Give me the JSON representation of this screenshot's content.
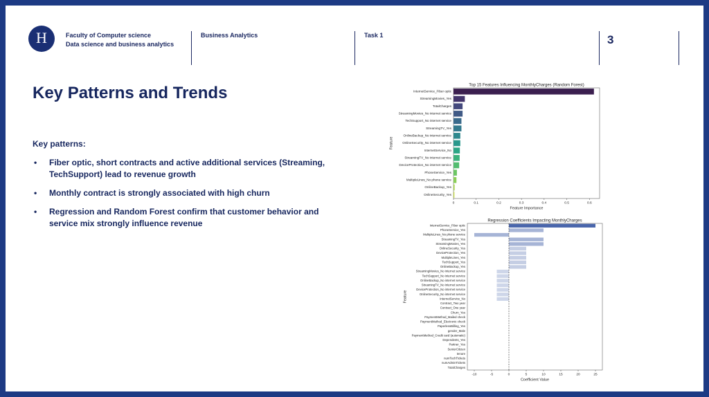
{
  "header": {
    "faculty": "Faculty of Computer science",
    "program": "Data science and business analytics",
    "course": "Business Analytics",
    "task": "Task 1",
    "page": "3"
  },
  "body": {
    "title": "Key Patterns and Trends",
    "lead": "Key patterns:",
    "bullets": [
      "Fiber optic, short contracts and active additional services (Streaming, TechSupport) lead to revenue growth",
      "Monthly contract is strongly associated with high churn",
      "Regression and Random Forest confirm that customer behavior and service mix strongly influence revenue"
    ]
  },
  "chart_data": [
    {
      "type": "barh",
      "title": "Top 15 Features Influencing MonthlyCharges (Random Forest)",
      "xlabel": "Feature Importance",
      "ylabel": "Feature",
      "categories": [
        "InternetService_Fiber optic",
        "StreamingMovies_Yes",
        "TotalCharges",
        "StreamingMovies_No internet service",
        "TechSupport_No internet service",
        "StreamingTV_Yes",
        "OnlineBackup_No internet service",
        "OnlineSecurity_No internet service",
        "InternetService_No",
        "StreamingTV_No internet service",
        "DeviceProtection_No internet service",
        "PhoneService_Yes",
        "MultipleLines_No phone service",
        "OnlineBackup_Yes",
        "OnlineSecurity_Yes"
      ],
      "values": [
        0.62,
        0.05,
        0.04,
        0.04,
        0.035,
        0.035,
        0.03,
        0.03,
        0.028,
        0.027,
        0.025,
        0.015,
        0.013,
        0.005,
        0.004
      ],
      "colors": [
        "#3b1f4f",
        "#43356b",
        "#44497d",
        "#405a86",
        "#3a6a8c",
        "#347a8e",
        "#2e898e",
        "#2a988c",
        "#2ca686",
        "#3bb27c",
        "#52bd70",
        "#6cc664",
        "#8bcf58",
        "#aad74e",
        "#c9dd4a"
      ],
      "xlim": [
        0,
        0.645
      ],
      "xticks": [
        0.0,
        0.1,
        0.2,
        0.3,
        0.4,
        0.5,
        0.6
      ]
    },
    {
      "type": "barh",
      "title": "Regression Coefficients Impacting MonthlyCharges",
      "xlabel": "Coefficient Value",
      "ylabel": "Feature",
      "color": "#4a66ac",
      "categories": [
        "InternetService_Fiber optic",
        "PhoneService_Yes",
        "MultipleLines_No phone service",
        "StreamingTV_Yes",
        "StreamingMovies_Yes",
        "OnlineSecurity_Yes",
        "DeviceProtection_Yes",
        "MultipleLines_Yes",
        "TechSupport_Yes",
        "OnlineBackup_Yes",
        "StreamingMovies_No internet service",
        "TechSupport_No internet service",
        "OnlineBackup_No internet service",
        "StreamingTV_No internet service",
        "DeviceProtection_No internet service",
        "OnlineSecurity_No internet service",
        "InternetService_No",
        "Contract_Two year",
        "Contract_One year",
        "Churn_Yes",
        "PaymentMethod_Mailed check",
        "PaymentMethod_Electronic check",
        "PaperlessBilling_Yes",
        "gender_Male",
        "PaymentMethod_Credit card (automatic)",
        "Dependents_Yes",
        "Partner_Yes",
        "SeniorCitizen",
        "tenure",
        "numTechTickets",
        "numAdminTickets",
        "TotalCharges"
      ],
      "values": [
        25,
        10,
        -10,
        10,
        10,
        5,
        5,
        5,
        5,
        5,
        -3.5,
        -3.5,
        -3.5,
        -3.5,
        -3.5,
        -3.5,
        -3.5,
        0,
        0,
        0,
        0,
        0,
        0,
        0,
        0,
        0,
        0,
        0,
        0,
        0,
        0,
        0
      ],
      "xlim": [
        -12,
        27
      ],
      "xticks": [
        -10,
        -5,
        0,
        5,
        10,
        15,
        20,
        25
      ]
    }
  ]
}
